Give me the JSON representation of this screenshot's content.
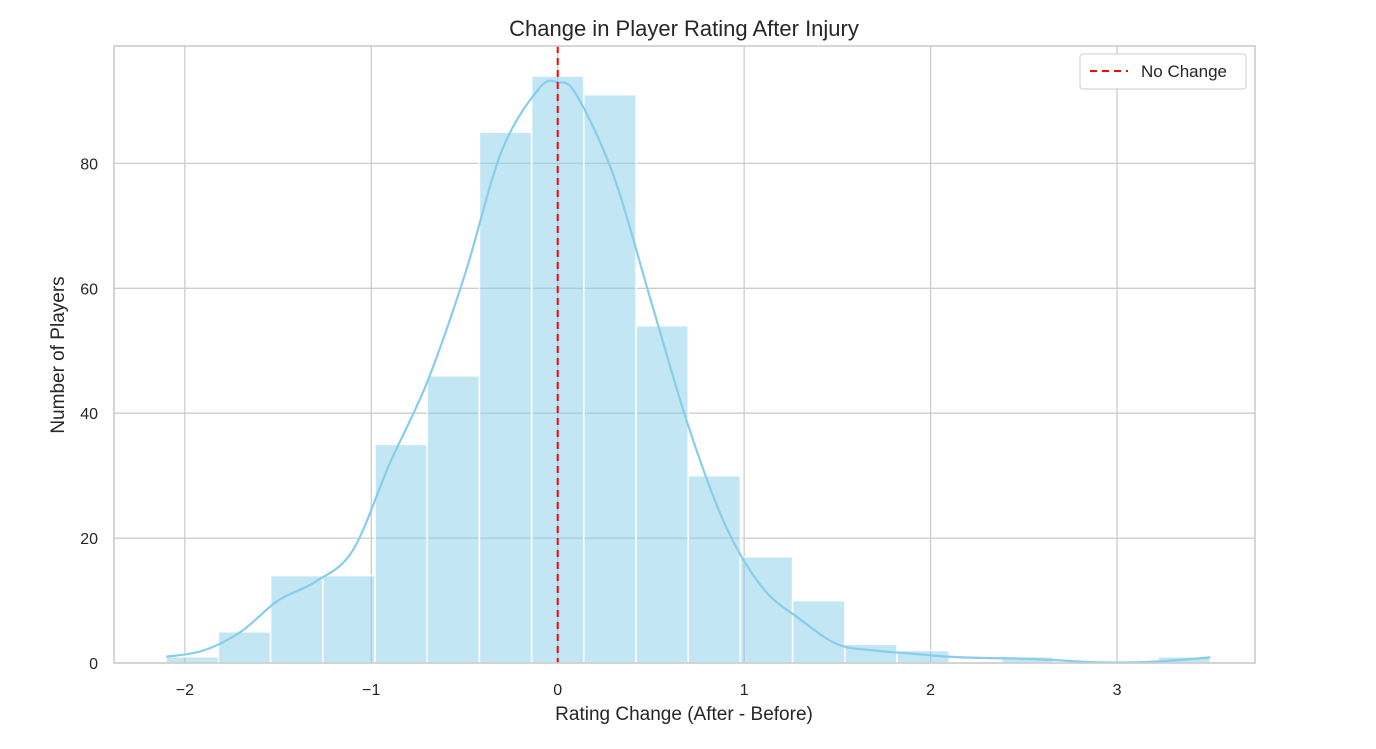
{
  "chart_data": {
    "type": "bar",
    "subtype": "histogram-with-kde",
    "title": "Change in Player Rating After Injury",
    "xlabel": "Rating Change (After - Before)",
    "ylabel": "Number of Players",
    "xlim": [
      -2.38,
      3.74
    ],
    "ylim": [
      0,
      98.8
    ],
    "x_ticks": [
      -2,
      -1,
      0,
      1,
      2,
      3
    ],
    "x_tick_labels": [
      "−2",
      "−1",
      "0",
      "1",
      "2",
      "3"
    ],
    "y_ticks": [
      0,
      20,
      40,
      60,
      80
    ],
    "y_tick_labels": [
      "0",
      "20",
      "40",
      "60",
      "80"
    ],
    "grid": true,
    "bins": [
      {
        "x0": -2.1,
        "x1": -1.82,
        "count": 1
      },
      {
        "x0": -1.82,
        "x1": -1.54,
        "count": 5
      },
      {
        "x0": -1.54,
        "x1": -1.26,
        "count": 14
      },
      {
        "x0": -1.26,
        "x1": -0.98,
        "count": 14
      },
      {
        "x0": -0.98,
        "x1": -0.7,
        "count": 35
      },
      {
        "x0": -0.7,
        "x1": -0.42,
        "count": 46
      },
      {
        "x0": -0.42,
        "x1": -0.14,
        "count": 85
      },
      {
        "x0": -0.14,
        "x1": 0.14,
        "count": 94
      },
      {
        "x0": 0.14,
        "x1": 0.42,
        "count": 91
      },
      {
        "x0": 0.42,
        "x1": 0.7,
        "count": 54
      },
      {
        "x0": 0.7,
        "x1": 0.98,
        "count": 30
      },
      {
        "x0": 0.98,
        "x1": 1.26,
        "count": 17
      },
      {
        "x0": 1.26,
        "x1": 1.54,
        "count": 10
      },
      {
        "x0": 1.54,
        "x1": 1.82,
        "count": 3
      },
      {
        "x0": 1.82,
        "x1": 2.1,
        "count": 2
      },
      {
        "x0": 2.1,
        "x1": 2.38,
        "count": 0
      },
      {
        "x0": 2.38,
        "x1": 2.66,
        "count": 1
      },
      {
        "x0": 2.66,
        "x1": 2.94,
        "count": 0
      },
      {
        "x0": 2.94,
        "x1": 3.22,
        "count": 0
      },
      {
        "x0": 3.22,
        "x1": 3.5,
        "count": 1
      }
    ],
    "kde": {
      "x": [
        -2.1,
        -1.9,
        -1.7,
        -1.5,
        -1.3,
        -1.1,
        -0.9,
        -0.7,
        -0.5,
        -0.3,
        -0.1,
        0.0,
        0.1,
        0.3,
        0.5,
        0.7,
        0.9,
        1.1,
        1.3,
        1.5,
        1.7,
        1.9,
        2.1,
        2.3,
        2.5,
        2.7,
        2.9,
        3.1,
        3.3,
        3.5
      ],
      "y": [
        1,
        2,
        5,
        10,
        13,
        18,
        32,
        45,
        62,
        82,
        92,
        93,
        91,
        78,
        58,
        38,
        22,
        12,
        7,
        3,
        2,
        1.5,
        1,
        0.8,
        0.7,
        0.4,
        0.1,
        0.1,
        0.4,
        0.9
      ]
    },
    "reference_line": {
      "x": 0,
      "label": "No Change",
      "color": "#ff0000",
      "style": "dashed"
    },
    "legend": {
      "position": "top-right",
      "entries": [
        "No Change"
      ]
    },
    "colors": {
      "bar_fill": "#87ceeb",
      "bar_opacity": 0.5,
      "bar_edge": "#ffffff",
      "kde_line": "#87ceeb",
      "grid": "#cccccc",
      "axes": "#cccccc",
      "ref_line": "#ff0000",
      "text": "#262626"
    }
  }
}
